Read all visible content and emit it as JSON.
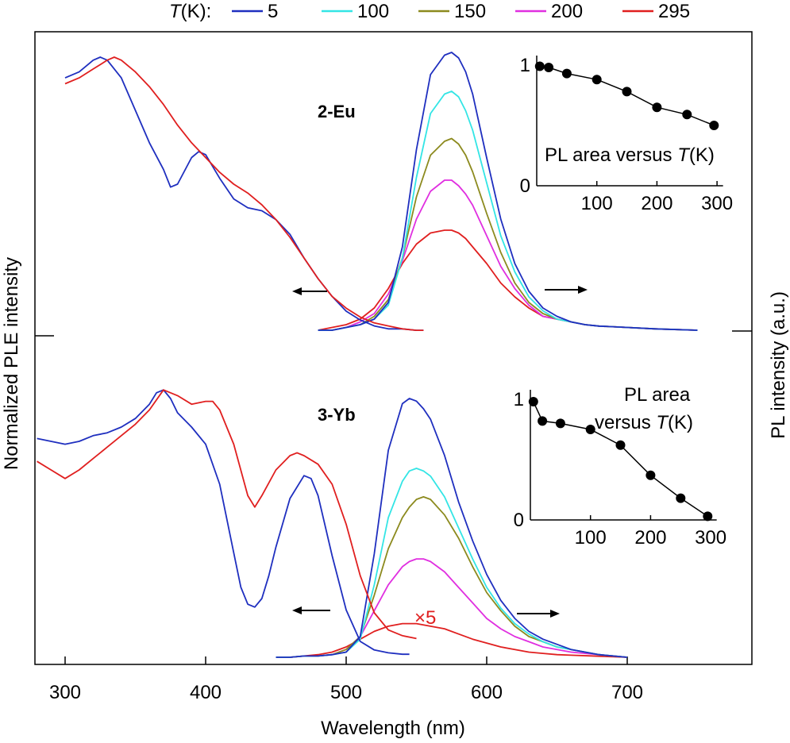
{
  "legend": {
    "title_italic": "T",
    "title_rest": "(K):",
    "entries": [
      {
        "label": "5",
        "color": "#1f2fbf"
      },
      {
        "label": "100",
        "color": "#33e5e5"
      },
      {
        "label": "150",
        "color": "#8c8a1e"
      },
      {
        "label": "200",
        "color": "#e02fe0"
      },
      {
        "label": "295",
        "color": "#e01f1f"
      }
    ]
  },
  "chart_data": {
    "type": "line",
    "xlabel": "Wavelength (nm)",
    "ylabel_left": "Normalized PLE intensity",
    "ylabel_right": "PL intensity (a.u.)",
    "xlim": [
      280,
      790
    ],
    "xticks": [
      300,
      400,
      500,
      600,
      700
    ],
    "panels": [
      {
        "label": "2-Eu",
        "ple": [
          {
            "name": "5",
            "x": [
              300,
              310,
              320,
              325,
              330,
              340,
              350,
              360,
              370,
              375,
              380,
              390,
              395,
              400,
              410,
              420,
              430,
              440,
              450,
              460,
              470,
              480,
              490,
              500,
              510,
              520,
              530,
              540,
              550,
              555
            ],
            "y": [
              0.86,
              0.88,
              0.92,
              0.93,
              0.92,
              0.86,
              0.75,
              0.64,
              0.55,
              0.49,
              0.5,
              0.59,
              0.61,
              0.6,
              0.52,
              0.45,
              0.42,
              0.41,
              0.38,
              0.33,
              0.25,
              0.18,
              0.12,
              0.07,
              0.04,
              0.02,
              0.01,
              0.01,
              0.005,
              0.005
            ]
          },
          {
            "name": "295",
            "x": [
              300,
              310,
              320,
              330,
              335,
              340,
              350,
              360,
              370,
              380,
              390,
              400,
              410,
              420,
              430,
              440,
              450,
              460,
              470,
              480,
              490,
              500,
              510,
              520,
              530,
              540,
              550,
              555
            ],
            "y": [
              0.84,
              0.86,
              0.89,
              0.92,
              0.93,
              0.92,
              0.88,
              0.83,
              0.77,
              0.7,
              0.64,
              0.59,
              0.54,
              0.5,
              0.47,
              0.43,
              0.38,
              0.32,
              0.25,
              0.18,
              0.12,
              0.08,
              0.05,
              0.03,
              0.02,
              0.01,
              0.005,
              0.005
            ]
          }
        ],
        "pl_x": [
          480,
          490,
          500,
          510,
          520,
          530,
          540,
          550,
          560,
          570,
          575,
          580,
          585,
          590,
          600,
          610,
          620,
          630,
          640,
          650,
          660,
          670,
          680,
          700,
          720,
          750
        ],
        "pl": [
          {
            "name": "5",
            "y": [
              0.0,
              0.0,
              0.01,
              0.02,
              0.04,
              0.1,
              0.3,
              0.65,
              0.92,
              0.99,
              1.0,
              0.98,
              0.93,
              0.85,
              0.62,
              0.4,
              0.24,
              0.14,
              0.08,
              0.05,
              0.03,
              0.02,
              0.015,
              0.01,
              0.005,
              0.0
            ]
          },
          {
            "name": "100",
            "y": [
              0.0,
              0.0,
              0.01,
              0.02,
              0.04,
              0.09,
              0.26,
              0.55,
              0.78,
              0.85,
              0.86,
              0.84,
              0.79,
              0.72,
              0.53,
              0.34,
              0.21,
              0.12,
              0.07,
              0.04,
              0.03,
              0.02,
              0.015,
              0.01,
              0.005,
              0.0
            ]
          },
          {
            "name": "150",
            "y": [
              0.0,
              0.0,
              0.01,
              0.02,
              0.05,
              0.11,
              0.26,
              0.48,
              0.63,
              0.68,
              0.69,
              0.67,
              0.63,
              0.57,
              0.42,
              0.28,
              0.17,
              0.1,
              0.06,
              0.04,
              0.03,
              0.02,
              0.015,
              0.01,
              0.005,
              0.0
            ]
          },
          {
            "name": "200",
            "y": [
              0.0,
              0.0,
              0.01,
              0.03,
              0.06,
              0.13,
              0.25,
              0.4,
              0.5,
              0.54,
              0.54,
              0.52,
              0.49,
              0.45,
              0.34,
              0.23,
              0.15,
              0.09,
              0.05,
              0.04,
              0.03,
              0.02,
              0.015,
              0.01,
              0.005,
              0.0
            ]
          },
          {
            "name": "295",
            "y": [
              0.0,
              0.01,
              0.02,
              0.04,
              0.08,
              0.15,
              0.24,
              0.31,
              0.35,
              0.36,
              0.36,
              0.35,
              0.33,
              0.3,
              0.24,
              0.17,
              0.12,
              0.08,
              0.05,
              0.04,
              0.03,
              0.02,
              0.015,
              0.01,
              0.005,
              0.0
            ]
          }
        ],
        "inset": {
          "title_prefix": "PL area versus ",
          "title_italic": "T",
          "title_suffix": "(K)",
          "xticks": [
            100,
            200,
            300
          ],
          "yticks": [
            0,
            1
          ],
          "xlim": [
            0,
            310
          ],
          "ylim": [
            0,
            1.0
          ],
          "x": [
            5,
            20,
            50,
            100,
            150,
            200,
            250,
            295
          ],
          "y": [
            0.99,
            0.98,
            0.93,
            0.88,
            0.78,
            0.65,
            0.59,
            0.5
          ]
        }
      },
      {
        "label": "3-Yb",
        "ple": [
          {
            "name": "5",
            "x": [
              280,
              290,
              300,
              310,
              320,
              330,
              340,
              350,
              360,
              365,
              370,
              375,
              380,
              390,
              400,
              410,
              420,
              425,
              430,
              435,
              440,
              445,
              450,
              460,
              470,
              475,
              480,
              490,
              500,
              510,
              520,
              530,
              540,
              545
            ],
            "y": [
              0.76,
              0.75,
              0.74,
              0.75,
              0.77,
              0.78,
              0.8,
              0.83,
              0.88,
              0.92,
              0.93,
              0.9,
              0.85,
              0.8,
              0.74,
              0.6,
              0.36,
              0.24,
              0.18,
              0.17,
              0.2,
              0.28,
              0.38,
              0.55,
              0.63,
              0.62,
              0.56,
              0.35,
              0.16,
              0.05,
              0.02,
              0.01,
              0.005,
              0.005
            ]
          },
          {
            "name": "295",
            "x": [
              280,
              290,
              300,
              310,
              320,
              330,
              340,
              350,
              360,
              370,
              380,
              390,
              400,
              405,
              410,
              420,
              430,
              435,
              440,
              450,
              460,
              465,
              470,
              480,
              490,
              500,
              510,
              520,
              530,
              540,
              550
            ],
            "y": [
              0.68,
              0.65,
              0.62,
              0.65,
              0.69,
              0.73,
              0.77,
              0.81,
              0.86,
              0.93,
              0.91,
              0.88,
              0.89,
              0.89,
              0.86,
              0.74,
              0.56,
              0.52,
              0.56,
              0.65,
              0.7,
              0.71,
              0.7,
              0.67,
              0.6,
              0.46,
              0.28,
              0.15,
              0.09,
              0.07,
              0.06
            ]
          }
        ],
        "pl_x": [
          450,
          460,
          470,
          480,
          490,
          500,
          510,
          520,
          530,
          540,
          545,
          550,
          555,
          560,
          570,
          580,
          590,
          600,
          610,
          620,
          630,
          640,
          650,
          660,
          680,
          700
        ],
        "pl": [
          {
            "name": "5",
            "y": [
              0.0,
              0.0,
              0.005,
              0.005,
              0.01,
              0.02,
              0.08,
              0.4,
              0.8,
              0.98,
              1.0,
              0.99,
              0.96,
              0.92,
              0.78,
              0.6,
              0.45,
              0.32,
              0.22,
              0.15,
              0.1,
              0.07,
              0.05,
              0.03,
              0.01,
              0.0
            ]
          },
          {
            "name": "100",
            "y": [
              0.0,
              0.0,
              0.005,
              0.005,
              0.01,
              0.02,
              0.07,
              0.28,
              0.54,
              0.68,
              0.72,
              0.73,
              0.72,
              0.7,
              0.62,
              0.5,
              0.38,
              0.27,
              0.19,
              0.13,
              0.09,
              0.06,
              0.04,
              0.03,
              0.01,
              0.0
            ]
          },
          {
            "name": "150",
            "y": [
              0.0,
              0.0,
              0.005,
              0.005,
              0.01,
              0.03,
              0.08,
              0.24,
              0.42,
              0.54,
              0.58,
              0.61,
              0.62,
              0.61,
              0.55,
              0.46,
              0.35,
              0.25,
              0.18,
              0.12,
              0.08,
              0.06,
              0.04,
              0.03,
              0.01,
              0.0
            ]
          },
          {
            "name": "200",
            "y": [
              0.0,
              0.0,
              0.005,
              0.005,
              0.01,
              0.03,
              0.08,
              0.18,
              0.28,
              0.35,
              0.37,
              0.38,
              0.38,
              0.37,
              0.33,
              0.27,
              0.21,
              0.15,
              0.11,
              0.08,
              0.06,
              0.04,
              0.03,
              0.02,
              0.01,
              0.0
            ]
          },
          {
            "name": "295",
            "y": [
              0.0,
              0.0,
              0.005,
              0.01,
              0.02,
              0.04,
              0.07,
              0.1,
              0.12,
              0.13,
              0.13,
              0.13,
              0.125,
              0.12,
              0.11,
              0.09,
              0.07,
              0.055,
              0.04,
              0.03,
              0.02,
              0.015,
              0.01,
              0.008,
              0.004,
              0.0
            ]
          }
        ],
        "annotation": "×5",
        "inset": {
          "title_line1": "PL area",
          "title_line2_prefix": "versus ",
          "title_italic": "T",
          "title_suffix": "(K)",
          "xticks": [
            100,
            200,
            300
          ],
          "yticks": [
            0,
            1
          ],
          "xlim": [
            0,
            310
          ],
          "ylim": [
            0,
            1.0
          ],
          "x": [
            5,
            20,
            50,
            100,
            150,
            200,
            250,
            295
          ],
          "y": [
            0.98,
            0.82,
            0.8,
            0.75,
            0.62,
            0.37,
            0.18,
            0.03
          ]
        }
      }
    ]
  }
}
